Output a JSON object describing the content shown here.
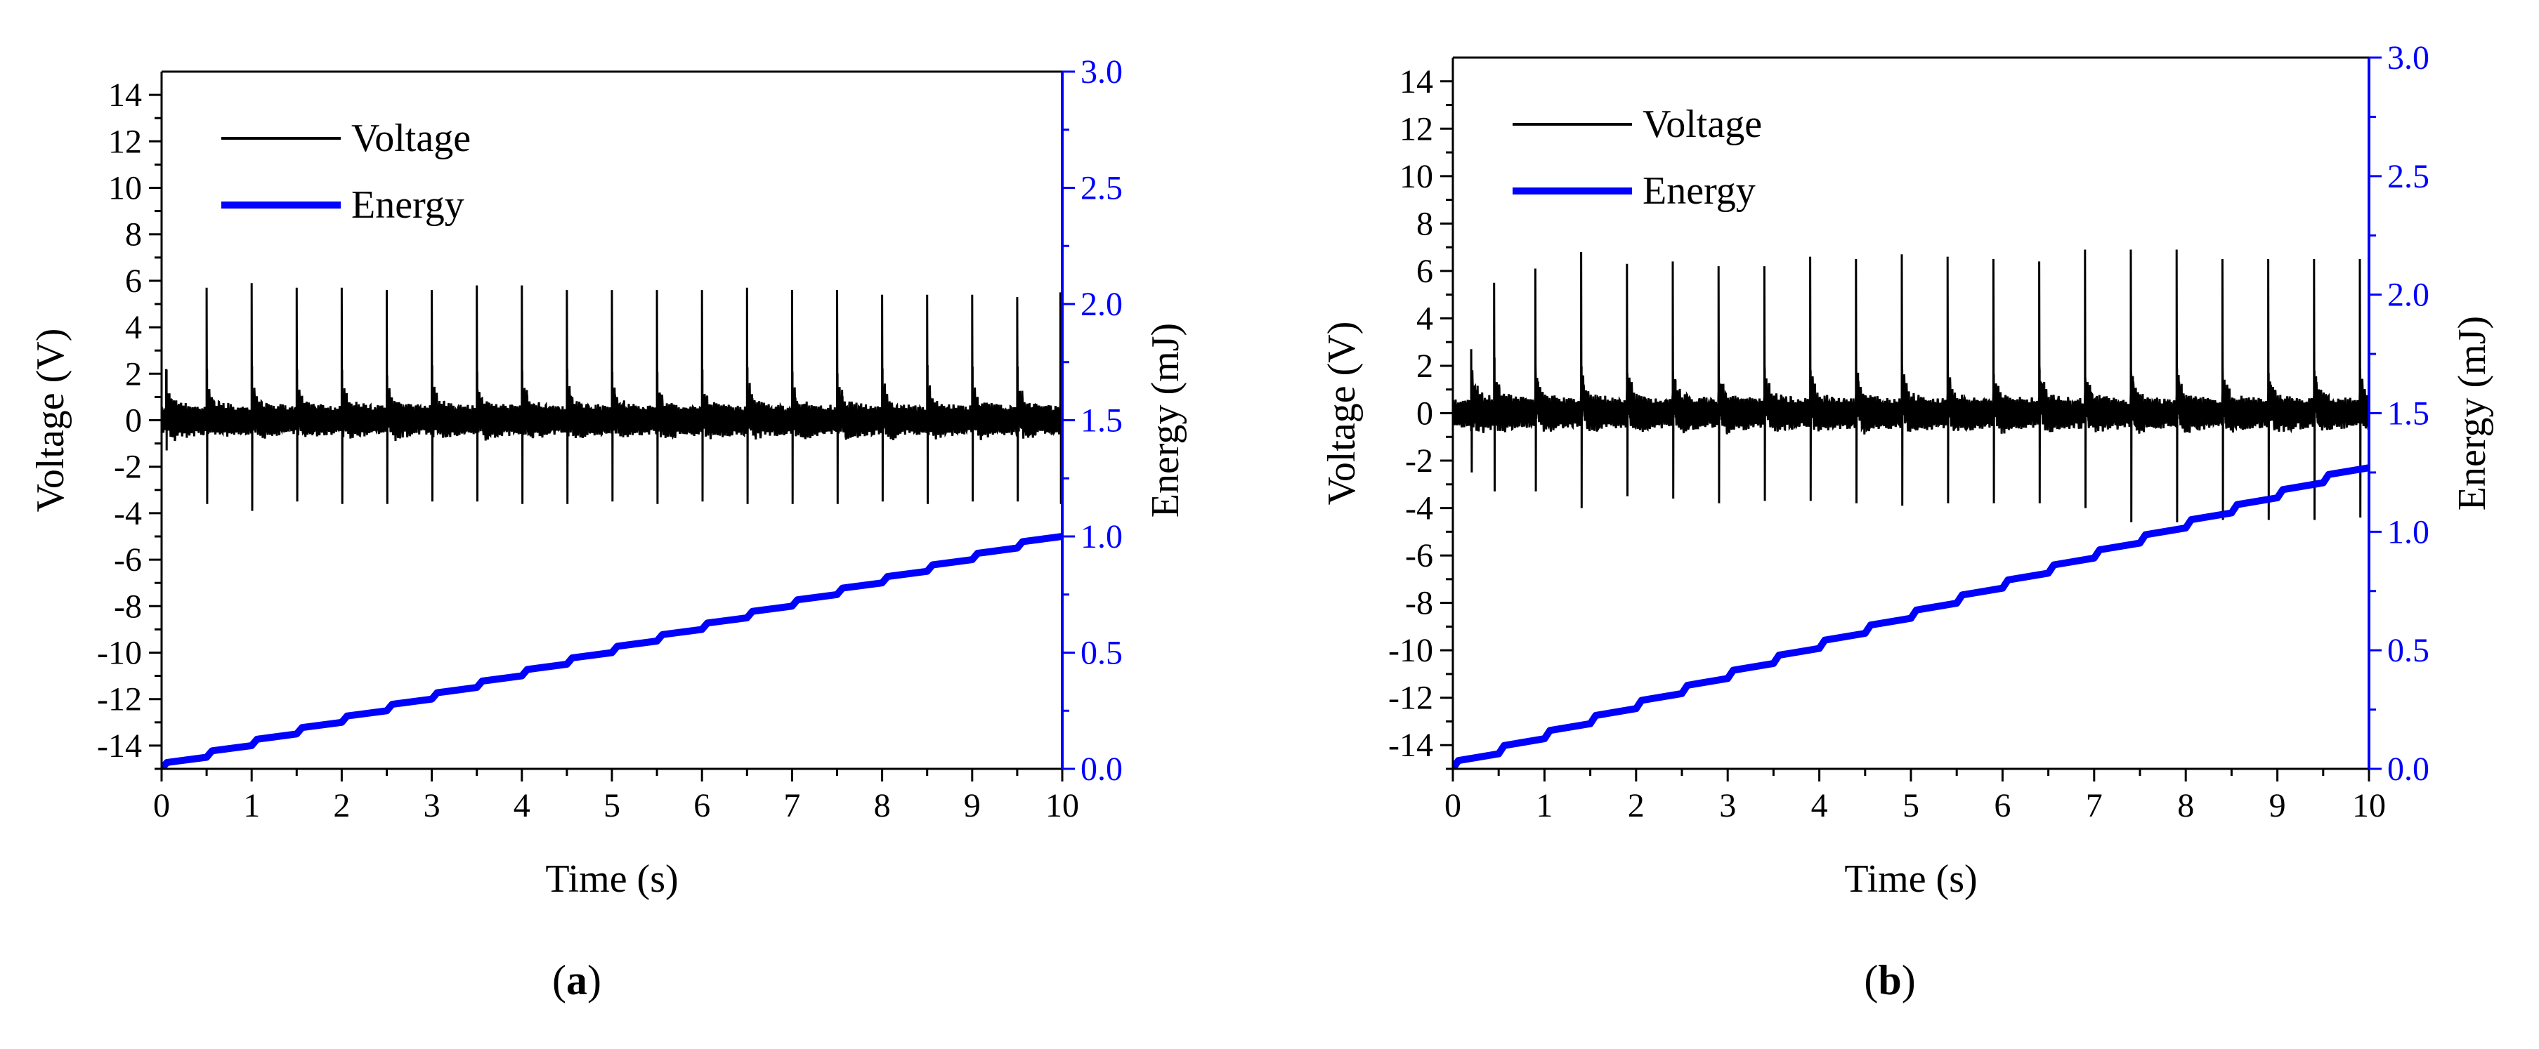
{
  "figure": {
    "panels": [
      "(a)",
      "(b)"
    ]
  },
  "chart_data": [
    {
      "id": "a",
      "type": "line",
      "label": "(a)",
      "title": "",
      "xlabel": "Time (s)",
      "ylabel": "Voltage (V)",
      "y2label": "Energy (mJ)",
      "xlim": [
        0,
        10
      ],
      "ylim": [
        -15,
        15
      ],
      "y2lim": [
        0,
        3.0
      ],
      "x_ticks": [
        "0",
        "1",
        "2",
        "3",
        "4",
        "5",
        "6",
        "7",
        "8",
        "9",
        "10"
      ],
      "y_ticks": [
        "14",
        "12",
        "10",
        "8",
        "6",
        "4",
        "2",
        "0",
        "-2",
        "-4",
        "-6",
        "-8",
        "-10",
        "-12",
        "-14"
      ],
      "y2_ticks": [
        "3.0",
        "2.5",
        "2.0",
        "1.5",
        "1.0",
        "0.5",
        "0.0"
      ],
      "grid": false,
      "legend": {
        "position": "top-left",
        "entries": [
          "Voltage",
          "Energy"
        ]
      },
      "colors": {
        "voltage": "#000000",
        "energy": "#0000ff",
        "right_axis": "#0000ff"
      },
      "series": [
        {
          "name": "Voltage",
          "axis": "left",
          "kind": "pulse-train",
          "baseline_noise": 1.1,
          "pulse_times": [
            0.05,
            0.5,
            1.0,
            1.5,
            2.0,
            2.5,
            3.0,
            3.5,
            4.0,
            4.5,
            5.0,
            5.5,
            6.0,
            6.5,
            7.0,
            7.5,
            8.0,
            8.5,
            9.0,
            9.5,
            9.98
          ],
          "pulse_peaks": [
            2.2,
            5.7,
            5.9,
            5.7,
            5.7,
            5.6,
            5.6,
            5.8,
            5.8,
            5.6,
            5.6,
            5.6,
            5.6,
            5.7,
            5.6,
            5.6,
            5.4,
            5.4,
            5.4,
            5.3,
            5.5
          ],
          "pulse_troughs": [
            -1.3,
            -3.6,
            -3.9,
            -3.5,
            -3.6,
            -3.6,
            -3.5,
            -3.5,
            -3.6,
            -3.6,
            -3.5,
            -3.6,
            -3.5,
            -3.6,
            -3.6,
            -3.6,
            -3.5,
            -3.6,
            -3.5,
            -3.5,
            -3.6
          ],
          "secondary_peak": 2.2,
          "secondary_trough": -2.0
        },
        {
          "name": "Energy",
          "axis": "right",
          "kind": "staircase",
          "x": [
            0,
            10
          ],
          "y": [
            0.0,
            1.0
          ],
          "steps": 20
        }
      ]
    },
    {
      "id": "b",
      "type": "line",
      "label": "(b)",
      "title": "",
      "xlabel": "Time (s)",
      "ylabel": "Voltage (V)",
      "y2label": "Energy (mJ)",
      "xlim": [
        0,
        10
      ],
      "ylim": [
        -15,
        15
      ],
      "y2lim": [
        0,
        3.0
      ],
      "x_ticks": [
        "0",
        "1",
        "2",
        "3",
        "4",
        "5",
        "6",
        "7",
        "8",
        "9",
        "10"
      ],
      "y_ticks": [
        "14",
        "12",
        "10",
        "8",
        "6",
        "4",
        "2",
        "0",
        "-2",
        "-4",
        "-6",
        "-8",
        "-10",
        "-12",
        "-14"
      ],
      "y2_ticks": [
        "3.0",
        "2.5",
        "2.0",
        "1.5",
        "1.0",
        "0.5",
        "0.0"
      ],
      "grid": false,
      "legend": {
        "position": "top-left",
        "entries": [
          "Voltage",
          "Energy"
        ]
      },
      "colors": {
        "voltage": "#000000",
        "energy": "#0000ff",
        "right_axis": "#0000ff"
      },
      "series": [
        {
          "name": "Voltage",
          "axis": "left",
          "kind": "pulse-train",
          "baseline_noise": 1.1,
          "pulse_times": [
            0.2,
            0.45,
            0.9,
            1.4,
            1.9,
            2.4,
            2.9,
            3.4,
            3.9,
            4.4,
            4.9,
            5.4,
            5.9,
            6.4,
            6.9,
            7.4,
            7.9,
            8.4,
            8.9,
            9.4,
            9.9
          ],
          "pulse_peaks": [
            2.7,
            5.5,
            6.1,
            6.8,
            6.3,
            6.4,
            6.2,
            6.2,
            6.6,
            6.5,
            6.7,
            6.6,
            6.5,
            6.4,
            6.9,
            6.9,
            6.9,
            6.5,
            6.5,
            6.5,
            6.5
          ],
          "pulse_troughs": [
            -2.5,
            -3.3,
            -3.3,
            -4.0,
            -3.5,
            -3.6,
            -3.8,
            -3.7,
            -3.7,
            -3.8,
            -3.9,
            -3.8,
            -3.8,
            -3.8,
            -4.0,
            -4.6,
            -4.6,
            -4.5,
            -4.5,
            -4.5,
            -4.4
          ],
          "secondary_peak": 2.3,
          "secondary_trough": -2.2
        },
        {
          "name": "Energy",
          "axis": "right",
          "kind": "staircase",
          "x": [
            0,
            10
          ],
          "y": [
            0.0,
            1.27
          ],
          "steps": 20
        }
      ]
    }
  ]
}
